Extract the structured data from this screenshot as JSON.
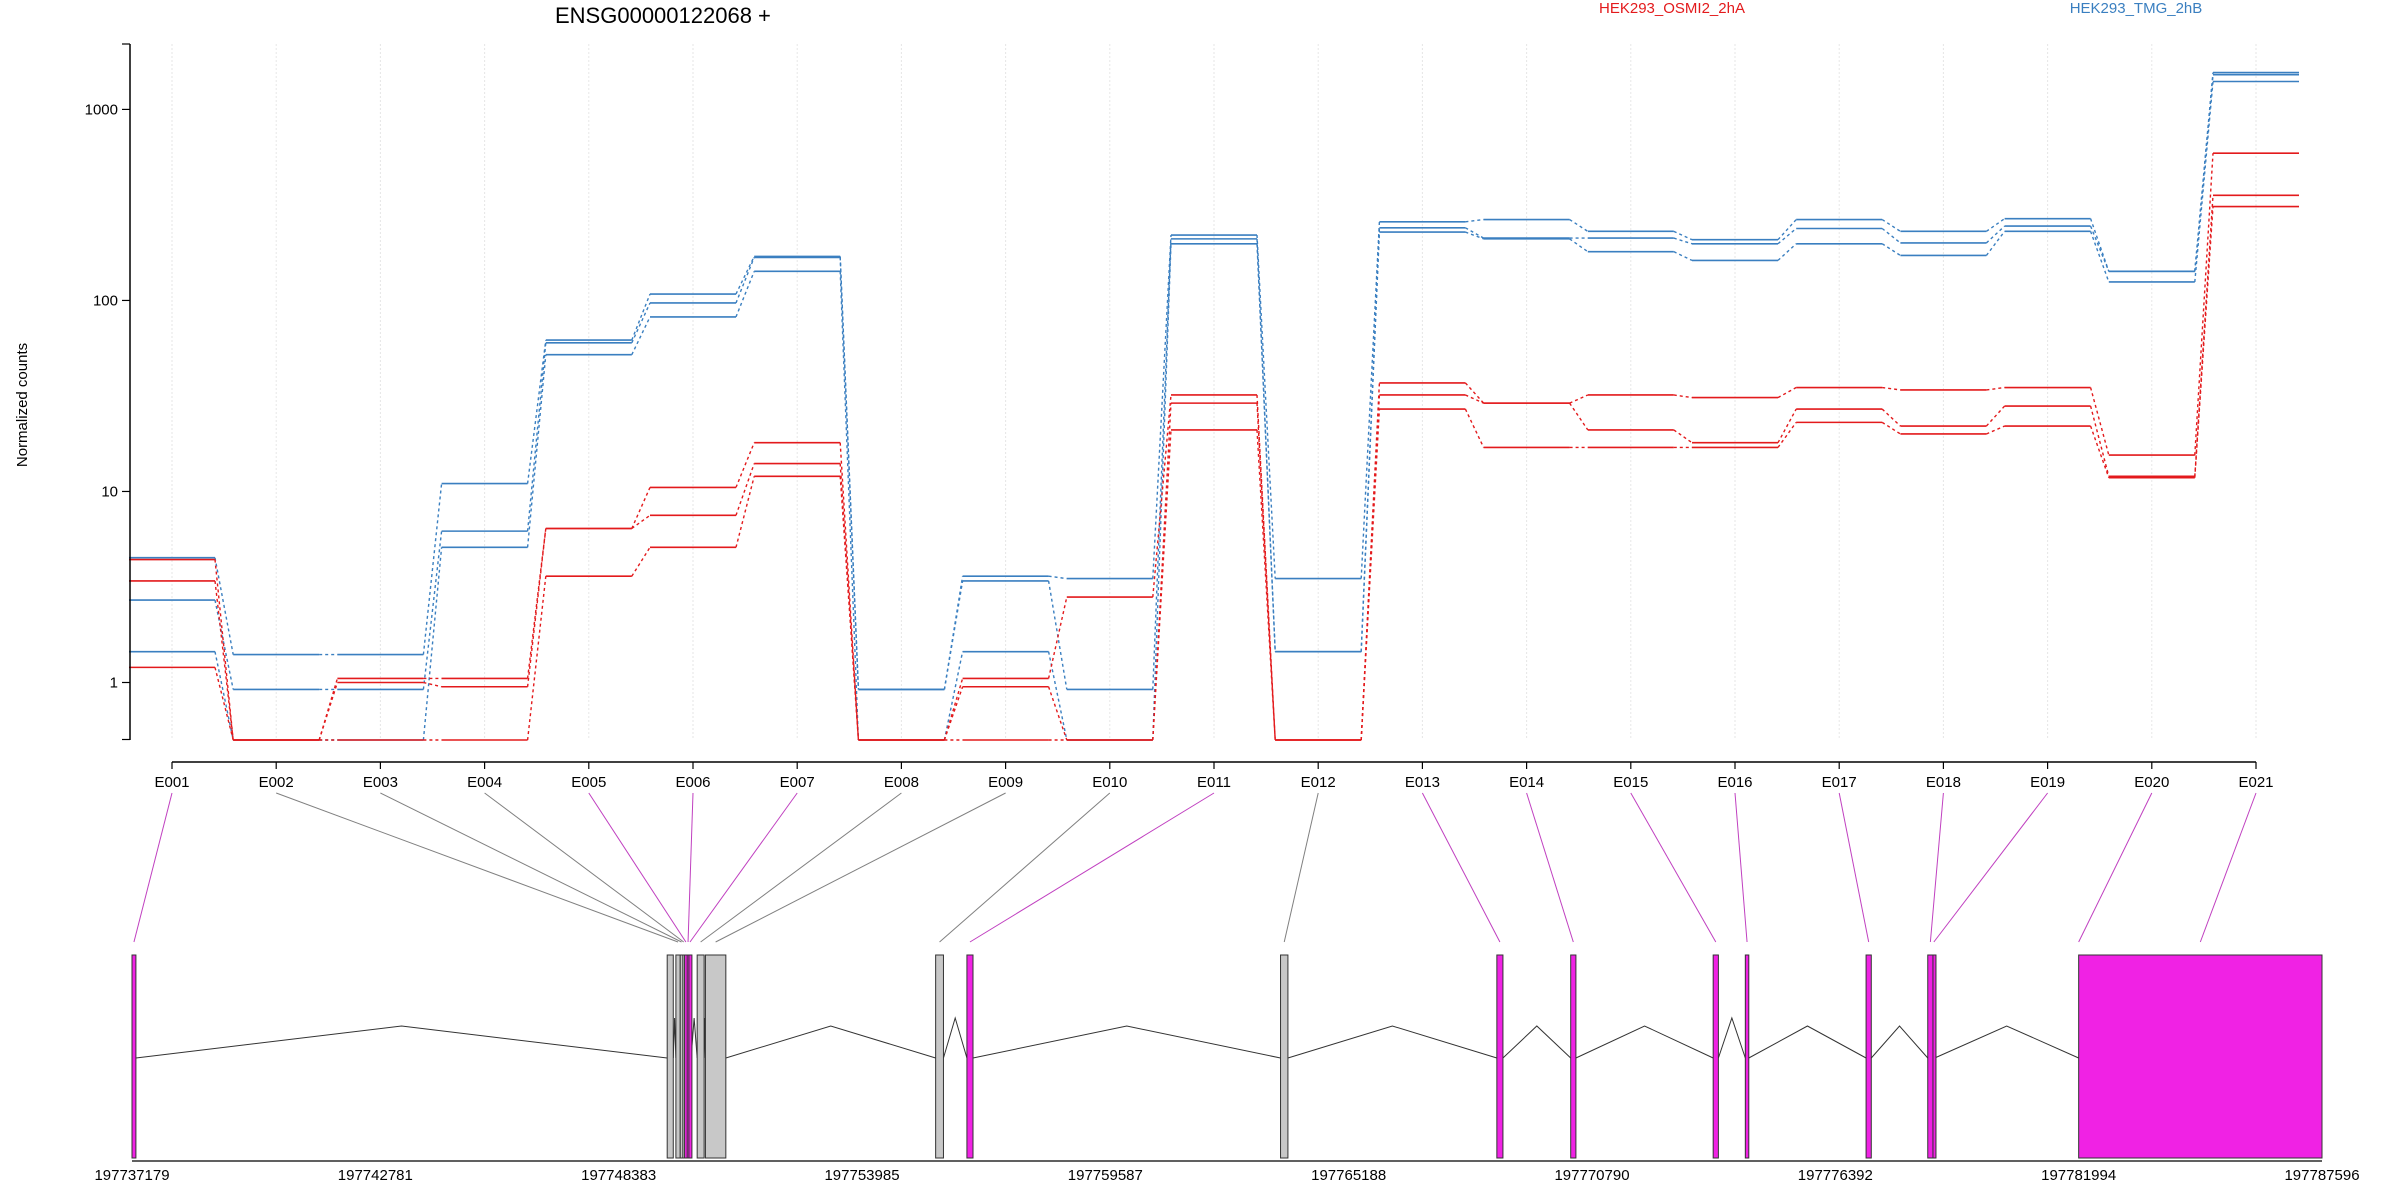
{
  "chart_data": {
    "type": "line",
    "title": "ENSG00000122068 +",
    "ylabel": "Normalized counts",
    "yscale": "log",
    "ylim": [
      0.5,
      2200
    ],
    "yticks": [
      1,
      10,
      100,
      1000
    ],
    "ytick_labels": [
      "1",
      "10",
      "100",
      "1000"
    ],
    "grid": "vertical-at-exons",
    "legend_placement": "top",
    "categories": [
      "E001",
      "E002",
      "E003",
      "E004",
      "E005",
      "E006",
      "E007",
      "E008",
      "E009",
      "E010",
      "E011",
      "E012",
      "E013",
      "E014",
      "E015",
      "E016",
      "E017",
      "E018",
      "E019",
      "E020",
      "E021"
    ],
    "colors": {
      "condition_a": "#e31a1c",
      "condition_b": "#3a7fc0",
      "exon_highlight": "#f022e4",
      "exon_plain": "#c8c8c8",
      "link_highlight": "#c040c0",
      "link_plain": "#808080"
    },
    "legend": [
      {
        "label": "HEK293_OSMI2_2hA",
        "color": "#e31a1c"
      },
      {
        "label": "HEK293_TMG_2hB",
        "color": "#3a7fc0"
      }
    ],
    "series": [
      {
        "color": "#3a7fc0",
        "values": [
          4.5,
          1.4,
          1.4,
          11,
          62,
          108,
          170,
          0.92,
          3.6,
          3.5,
          220,
          3.5,
          258,
          265,
          230,
          208,
          265,
          230,
          268,
          142,
          1560
        ]
      },
      {
        "color": "#3a7fc0",
        "values": [
          2.7,
          0.92,
          0.92,
          6.2,
          60,
          97,
          168,
          0.92,
          3.4,
          0.92,
          210,
          1.45,
          240,
          212,
          212,
          198,
          238,
          200,
          245,
          142,
          1520
        ]
      },
      {
        "color": "#3a7fc0",
        "values": [
          1.45,
          0.5,
          0.5,
          5.1,
          52,
          82,
          142,
          0.5,
          1.45,
          0.5,
          198,
          1.45,
          228,
          210,
          180,
          162,
          198,
          172,
          230,
          125,
          1400
        ]
      },
      {
        "color": "#e31a1c",
        "values": [
          4.4,
          0.5,
          1.05,
          1.05,
          6.4,
          10.5,
          18,
          0.5,
          1.05,
          2.8,
          32,
          0.5,
          37,
          29,
          32,
          31,
          35,
          34,
          35,
          15.5,
          590
        ]
      },
      {
        "color": "#e31a1c",
        "values": [
          3.4,
          0.5,
          1.0,
          0.95,
          6.4,
          7.5,
          14,
          0.5,
          0.95,
          0.5,
          29,
          0.5,
          32,
          29,
          21,
          18,
          27,
          22,
          28,
          12,
          355
        ]
      },
      {
        "color": "#e31a1c",
        "values": [
          1.2,
          0.5,
          0.5,
          0.5,
          3.6,
          5.1,
          12,
          0.5,
          0.5,
          0.5,
          21,
          0.5,
          27,
          17,
          17,
          17,
          23,
          20,
          22,
          11.8,
          310
        ]
      }
    ],
    "gene_model": {
      "coordinate_ticks": [
        "197737179",
        "197742781",
        "197748383",
        "197753985",
        "197759587",
        "197765188",
        "197770790",
        "197776392",
        "197781994",
        "197787596"
      ],
      "coord_start": 197737179,
      "coord_end": 197787596,
      "exons": [
        {
          "start": 197737179,
          "end": 197737269,
          "highlight": true,
          "link": "E001"
        },
        {
          "start": 197749500,
          "end": 197749640,
          "highlight": false
        },
        {
          "start": 197749700,
          "end": 197749800,
          "highlight": false,
          "link": "E002"
        },
        {
          "start": 197749800,
          "end": 197749860,
          "highlight": false,
          "link": "E003"
        },
        {
          "start": 197749860,
          "end": 197749900,
          "highlight": false,
          "link": "E004"
        },
        {
          "start": 197749900,
          "end": 197749960,
          "highlight": true,
          "link": "E005"
        },
        {
          "start": 197749960,
          "end": 197750000,
          "highlight": true,
          "link": "E006"
        },
        {
          "start": 197750000,
          "end": 197750050,
          "highlight": true,
          "link": "E007"
        },
        {
          "start": 197750190,
          "end": 197750350,
          "highlight": false,
          "link": "E008"
        },
        {
          "start": 197750380,
          "end": 197750850,
          "highlight": false,
          "link": "E009"
        },
        {
          "start": 197755680,
          "end": 197755860,
          "highlight": false,
          "link": "E010"
        },
        {
          "start": 197756400,
          "end": 197756540,
          "highlight": true,
          "link": "E011"
        },
        {
          "start": 197763620,
          "end": 197763790,
          "highlight": false,
          "link": "E012"
        },
        {
          "start": 197768600,
          "end": 197768740,
          "highlight": true,
          "link": "E013"
        },
        {
          "start": 197770300,
          "end": 197770420,
          "highlight": true,
          "link": "E014"
        },
        {
          "start": 197773580,
          "end": 197773700,
          "highlight": true,
          "link": "E015"
        },
        {
          "start": 197774320,
          "end": 197774400,
          "highlight": true,
          "link": "E016"
        },
        {
          "start": 197777100,
          "end": 197777220,
          "highlight": true,
          "link": "E017"
        },
        {
          "start": 197778520,
          "end": 197778640,
          "highlight": true,
          "link": "E018"
        },
        {
          "start": 197778640,
          "end": 197778680,
          "highlight": true,
          "link": "E019"
        },
        {
          "start": 197781994,
          "end": 197787596,
          "highlight": true,
          "link": "E020|E021"
        }
      ]
    }
  }
}
